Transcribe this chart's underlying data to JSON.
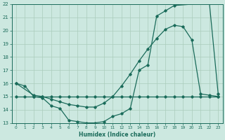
{
  "xlabel": "Humidex (Indice chaleur)",
  "bg_color": "#cce8e0",
  "line_color": "#1a6b5a",
  "grid_color": "#aaccbb",
  "xlim": [
    -0.5,
    23.5
  ],
  "ylim": [
    13,
    22
  ],
  "yticks": [
    13,
    14,
    15,
    16,
    17,
    18,
    19,
    20,
    21,
    22
  ],
  "xticks": [
    0,
    1,
    2,
    3,
    4,
    5,
    6,
    7,
    8,
    9,
    10,
    11,
    12,
    13,
    14,
    15,
    16,
    17,
    18,
    19,
    20,
    21,
    22,
    23
  ],
  "line1_x": [
    0,
    1,
    2,
    3,
    4,
    5,
    6,
    7,
    8,
    9,
    10,
    11,
    12,
    13,
    14,
    15,
    16,
    17,
    18,
    19,
    20,
    21,
    22,
    23
  ],
  "line1_y": [
    15,
    15,
    15,
    15,
    15,
    15,
    15,
    15,
    15,
    15,
    15,
    15,
    15,
    15,
    15,
    15,
    15,
    15,
    15,
    15,
    15,
    15,
    15,
    15
  ],
  "line2_x": [
    0,
    1,
    2,
    3,
    4,
    5,
    6,
    7,
    8,
    9,
    10,
    11,
    12,
    13,
    14,
    15,
    16,
    17,
    18,
    22,
    23
  ],
  "line2_y": [
    16,
    15.8,
    15.0,
    14.9,
    14.3,
    14.1,
    13.2,
    13.1,
    13.0,
    13.0,
    13.1,
    13.5,
    13.7,
    14.1,
    17.0,
    17.4,
    21.1,
    21.5,
    21.9,
    22.1,
    15.2
  ],
  "line3_x": [
    0,
    2,
    3,
    4,
    5,
    6,
    7,
    8,
    9,
    10,
    11,
    12,
    13,
    14,
    15,
    16,
    17,
    18,
    19,
    20,
    21,
    22,
    23
  ],
  "line3_y": [
    16,
    15.1,
    15.0,
    14.8,
    14.6,
    14.4,
    14.3,
    14.2,
    14.2,
    14.5,
    15.0,
    15.8,
    16.7,
    17.7,
    18.6,
    19.4,
    20.1,
    20.4,
    20.3,
    19.3,
    15.2,
    15.1,
    15.0
  ]
}
